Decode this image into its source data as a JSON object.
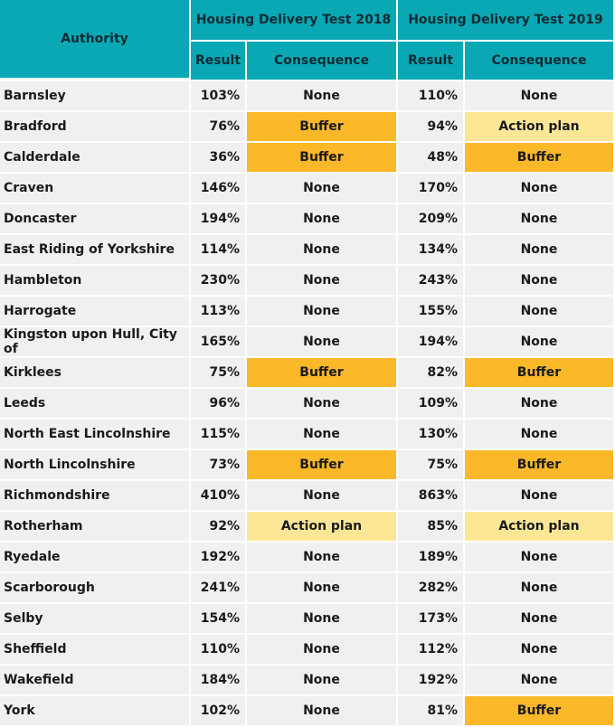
{
  "header": {
    "authority": "Authority",
    "test2018": "Housing Delivery Test 2018",
    "test2019": "Housing Delivery Test 2019",
    "result": "Result",
    "consequence": "Consequence"
  },
  "rows": [
    {
      "authority": "Barnsley",
      "r2018": "103%",
      "c2018": "None",
      "r2019": "110%",
      "c2019": "None"
    },
    {
      "authority": "Bradford",
      "r2018": "76%",
      "c2018": "Buffer",
      "r2019": "94%",
      "c2019": "Action plan"
    },
    {
      "authority": "Calderdale",
      "r2018": "36%",
      "c2018": "Buffer",
      "r2019": "48%",
      "c2019": "Buffer"
    },
    {
      "authority": "Craven",
      "r2018": "146%",
      "c2018": "None",
      "r2019": "170%",
      "c2019": "None"
    },
    {
      "authority": "Doncaster",
      "r2018": "194%",
      "c2018": "None",
      "r2019": "209%",
      "c2019": "None"
    },
    {
      "authority": "East Riding of Yorkshire",
      "r2018": "114%",
      "c2018": "None",
      "r2019": "134%",
      "c2019": "None"
    },
    {
      "authority": "Hambleton",
      "r2018": "230%",
      "c2018": "None",
      "r2019": "243%",
      "c2019": "None"
    },
    {
      "authority": "Harrogate",
      "r2018": "113%",
      "c2018": "None",
      "r2019": "155%",
      "c2019": "None"
    },
    {
      "authority": "Kingston upon Hull, City of",
      "r2018": "165%",
      "c2018": "None",
      "r2019": "194%",
      "c2019": "None"
    },
    {
      "authority": "Kirklees",
      "r2018": "75%",
      "c2018": "Buffer",
      "r2019": "82%",
      "c2019": "Buffer"
    },
    {
      "authority": "Leeds",
      "r2018": "96%",
      "c2018": "None",
      "r2019": "109%",
      "c2019": "None"
    },
    {
      "authority": "North East Lincolnshire",
      "r2018": "115%",
      "c2018": "None",
      "r2019": "130%",
      "c2019": "None"
    },
    {
      "authority": "North Lincolnshire",
      "r2018": "73%",
      "c2018": "Buffer",
      "r2019": "75%",
      "c2019": "Buffer"
    },
    {
      "authority": "Richmondshire",
      "r2018": "410%",
      "c2018": "None",
      "r2019": "863%",
      "c2019": "None"
    },
    {
      "authority": "Rotherham",
      "r2018": "92%",
      "c2018": "Action plan",
      "r2019": "85%",
      "c2019": "Action plan"
    },
    {
      "authority": "Ryedale",
      "r2018": "192%",
      "c2018": "None",
      "r2019": "189%",
      "c2019": "None"
    },
    {
      "authority": "Scarborough",
      "r2018": "241%",
      "c2018": "None",
      "r2019": "282%",
      "c2019": "None"
    },
    {
      "authority": "Selby",
      "r2018": "154%",
      "c2018": "None",
      "r2019": "173%",
      "c2019": "None"
    },
    {
      "authority": "Sheffield",
      "r2018": "110%",
      "c2018": "None",
      "r2019": "112%",
      "c2019": "None"
    },
    {
      "authority": "Wakefield",
      "r2018": "184%",
      "c2018": "None",
      "r2019": "192%",
      "c2019": "None"
    },
    {
      "authority": "York",
      "r2018": "102%",
      "c2018": "None",
      "r2019": "81%",
      "c2019": "Buffer"
    }
  ],
  "colors": {
    "header_bg": "#0aa8b5",
    "buffer": "#fbb829",
    "action_plan": "#fde797",
    "row_bg": "#f0f0f0"
  }
}
